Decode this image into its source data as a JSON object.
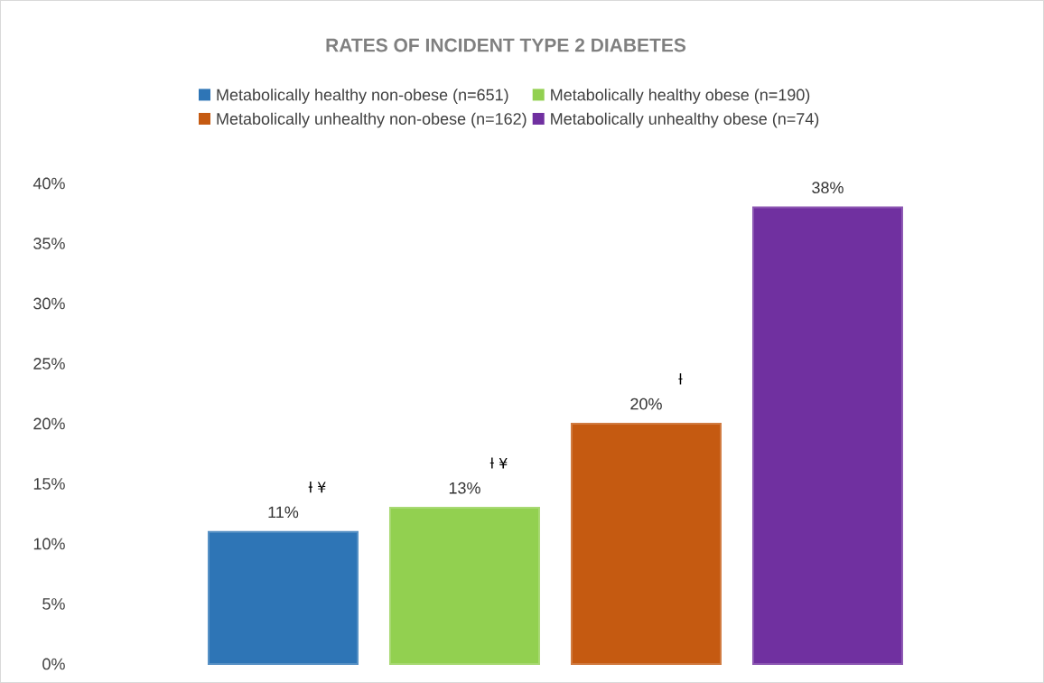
{
  "chart_data": {
    "type": "bar",
    "title": "RATES OF INCIDENT TYPE 2 DIABETES",
    "categories": [
      null
    ],
    "series": [
      {
        "name": "Metabolically healthy non-obese (n=651)",
        "color": "#2e75b6",
        "values": [
          11
        ],
        "value_labels": [
          "11%"
        ]
      },
      {
        "name": "Metabolically healthy obese (n=190)",
        "color": "#92d050",
        "values": [
          13
        ],
        "value_labels": [
          "13%"
        ]
      },
      {
        "name": "Metabolically unhealthy non-obese (n=162)",
        "color": "#c55a11",
        "values": [
          20
        ],
        "value_labels": [
          "20%"
        ]
      },
      {
        "name": "Metabolically unhealthy obese (n=74)",
        "color": "#7030a0",
        "values": [
          38
        ],
        "value_labels": [
          "38%"
        ]
      }
    ],
    "annotations": [
      "ƚ ¥",
      "ƚ ¥",
      "ƚ"
    ],
    "ylim": [
      0,
      40
    ],
    "yticks": [
      {
        "value": 0,
        "label": "0%"
      },
      {
        "value": 5,
        "label": "5%"
      },
      {
        "value": 10,
        "label": "10%"
      },
      {
        "value": 15,
        "label": "15%"
      },
      {
        "value": 20,
        "label": "20%"
      },
      {
        "value": 25,
        "label": "25%"
      },
      {
        "value": 30,
        "label": "30%"
      },
      {
        "value": 35,
        "label": "35%"
      },
      {
        "value": 40,
        "label": "40%"
      }
    ],
    "legend": "top",
    "grid": false
  }
}
